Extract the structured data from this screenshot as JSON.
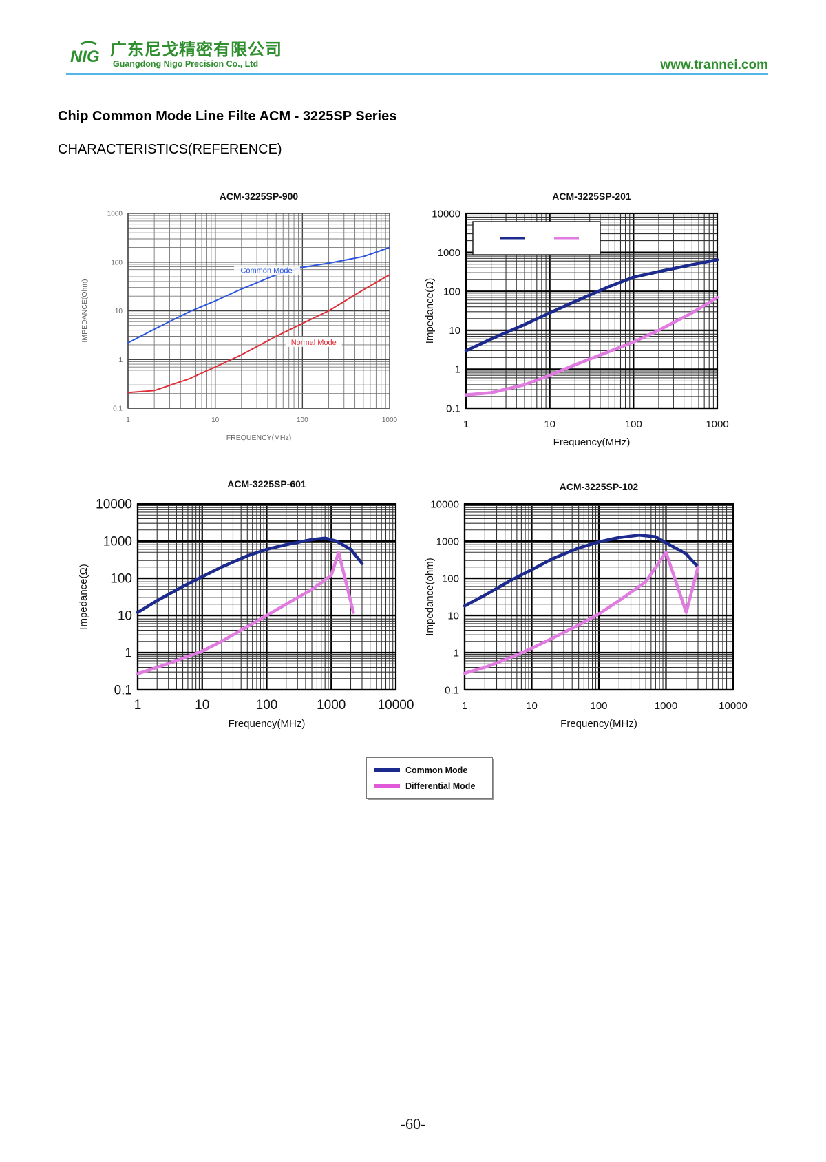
{
  "header": {
    "logo_text": "NIG",
    "company_cn": "广东尼戈精密有限公司",
    "company_en": "Guangdong Nigo Precision Co., Ltd",
    "website": "www.trannei.com"
  },
  "document": {
    "title": "Chip Common Mode Line Filte ACM - 3225SP Series",
    "subtitle": "CHARACTERISTICS(REFERENCE)"
  },
  "legend": {
    "items": [
      {
        "label": "Common Mode",
        "color": "#1b2a8c"
      },
      {
        "label": "Differential Mode",
        "color": "#e05ad8"
      }
    ]
  },
  "page_number": "-60-",
  "chart_data": [
    {
      "type": "line",
      "title": "ACM-3225SP-900",
      "xlabel": "FREQUENCY(MHz)",
      "ylabel": "IMPEDANCE(Ohm)",
      "x_scale": "log",
      "y_scale": "log",
      "xlim": [
        1,
        1000
      ],
      "ylim": [
        0.1,
        1000
      ],
      "x_ticks": [
        "1",
        "10",
        "100",
        "1000"
      ],
      "y_ticks": [
        "0.1",
        "1",
        "10",
        "100",
        "1000"
      ],
      "grid": true,
      "series": [
        {
          "name": "Common Mode",
          "color": "#2b55e0",
          "x": [
            1,
            2,
            5,
            10,
            20,
            50,
            100,
            200,
            500,
            1000
          ],
          "y": [
            2.2,
            4.2,
            9.5,
            16,
            28,
            55,
            78,
            95,
            130,
            200
          ]
        },
        {
          "name": "Normal Mode",
          "color": "#e0303a",
          "x": [
            1,
            2,
            5,
            10,
            20,
            50,
            100,
            200,
            500,
            1000
          ],
          "y": [
            0.21,
            0.23,
            0.4,
            0.7,
            1.25,
            3,
            5.5,
            10,
            27,
            55
          ]
        }
      ]
    },
    {
      "type": "line",
      "title": "ACM-3225SP-201",
      "xlabel": "Frequency(MHz)",
      "ylabel": "Impedance(Ω)",
      "x_scale": "log",
      "y_scale": "log",
      "xlim": [
        1,
        1000
      ],
      "ylim": [
        0.1,
        10000
      ],
      "x_ticks": [
        "1",
        "10",
        "100",
        "1000"
      ],
      "y_ticks": [
        "0.1",
        "1",
        "10",
        "100",
        "1000",
        "10000"
      ],
      "grid": true,
      "inset_legend": true,
      "series": [
        {
          "color": "#1b2a8c",
          "x": [
            1,
            2,
            5,
            10,
            20,
            50,
            100,
            200,
            500,
            1000
          ],
          "y": [
            3,
            6,
            14,
            28,
            55,
            130,
            230,
            320,
            480,
            650
          ]
        },
        {
          "color": "#e07be0",
          "x": [
            1,
            2,
            5,
            10,
            20,
            50,
            100,
            200,
            500,
            1000
          ],
          "y": [
            0.22,
            0.25,
            0.4,
            0.7,
            1.3,
            2.8,
            5,
            10,
            28,
            70
          ]
        }
      ]
    },
    {
      "type": "line",
      "title": "ACM-3225SP-601",
      "xlabel": "Frequency(MHz)",
      "ylabel": "Impedance(Ω)",
      "x_scale": "log",
      "y_scale": "log",
      "xlim": [
        1,
        10000
      ],
      "ylim": [
        0.1,
        10000
      ],
      "x_ticks": [
        "1",
        "10",
        "100",
        "1000",
        "10000"
      ],
      "y_ticks": [
        "0.1",
        "1",
        "10",
        "100",
        "1000",
        "10000"
      ],
      "grid": true,
      "series": [
        {
          "name": "Common Mode",
          "color": "#1b2a8c",
          "x": [
            1,
            2,
            5,
            10,
            20,
            50,
            100,
            200,
            500,
            800,
            1200,
            2000,
            3000
          ],
          "y": [
            12,
            25,
            60,
            110,
            200,
            400,
            600,
            800,
            1100,
            1200,
            1000,
            600,
            250
          ]
        },
        {
          "name": "Differential Mode",
          "color": "#e07be0",
          "x": [
            1,
            2,
            5,
            10,
            20,
            50,
            100,
            200,
            500,
            1000,
            1300,
            2200
          ],
          "y": [
            0.27,
            0.4,
            0.7,
            1.1,
            2.0,
            5,
            10,
            20,
            50,
            120,
            500,
            12
          ]
        }
      ]
    },
    {
      "type": "line",
      "title": "ACM-3225SP-102",
      "xlabel": "Frequency(MHz)",
      "ylabel": "Impedance(ohm)",
      "x_scale": "log",
      "y_scale": "log",
      "xlim": [
        1,
        10000
      ],
      "ylim": [
        0.1,
        10000
      ],
      "x_ticks": [
        "1",
        "10",
        "100",
        "1000",
        "10000"
      ],
      "y_ticks": [
        "0.1",
        "1",
        "10",
        "100",
        "1000",
        "10000"
      ],
      "grid": true,
      "series": [
        {
          "name": "Common Mode",
          "color": "#1b2a8c",
          "x": [
            1,
            2,
            5,
            10,
            20,
            50,
            100,
            200,
            400,
            700,
            1000,
            2000,
            3000
          ],
          "y": [
            18,
            35,
            90,
            170,
            330,
            650,
            950,
            1250,
            1450,
            1300,
            900,
            450,
            200
          ]
        },
        {
          "name": "Differential Mode",
          "color": "#e07be0",
          "x": [
            1,
            2,
            5,
            10,
            20,
            50,
            100,
            200,
            500,
            1000,
            2000,
            3000
          ],
          "y": [
            0.28,
            0.4,
            0.75,
            1.3,
            2.4,
            5.5,
            11,
            25,
            80,
            500,
            12,
            200
          ]
        }
      ]
    }
  ]
}
